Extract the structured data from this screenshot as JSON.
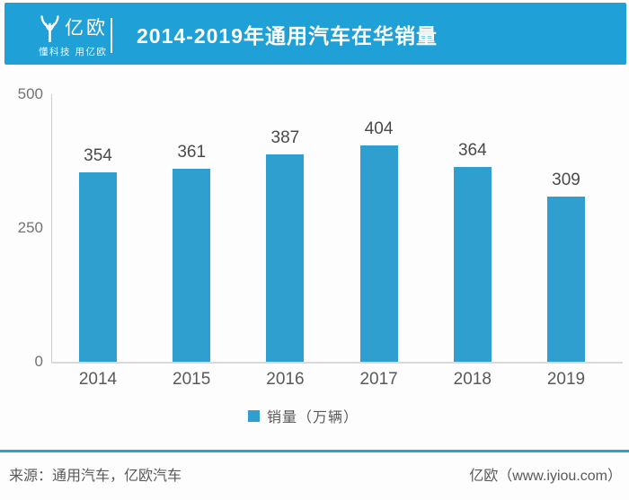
{
  "header": {
    "logo": {
      "brand": "亿欧",
      "tagline": "懂科技 用亿欧"
    },
    "title": "2014-2019年通用汽车在华销量"
  },
  "chart_data": {
    "type": "bar",
    "categories": [
      "2014",
      "2015",
      "2016",
      "2017",
      "2018",
      "2019"
    ],
    "values": [
      354,
      361,
      387,
      404,
      364,
      309
    ],
    "title": "2014-2019年通用汽车在华销量",
    "xlabel": "",
    "ylabel": "",
    "yticks": [
      0,
      250,
      500
    ],
    "ylim": [
      0,
      500
    ],
    "legend": "销量（万辆）",
    "legend_position": "bottom",
    "grid": false,
    "value_labels": true,
    "bar_color": "#2F9FCF"
  },
  "footer": {
    "source": "来源：通用汽车，亿欧汽车",
    "brand": "亿欧（www.iyiou.com）"
  },
  "colors": {
    "banner_blue": "#1FA0D6",
    "bar_blue": "#2F9FCF",
    "footer_rule_blue": "#2AA1D3",
    "axis_gray": "#CCCCCC",
    "label_gray": "#595959"
  }
}
